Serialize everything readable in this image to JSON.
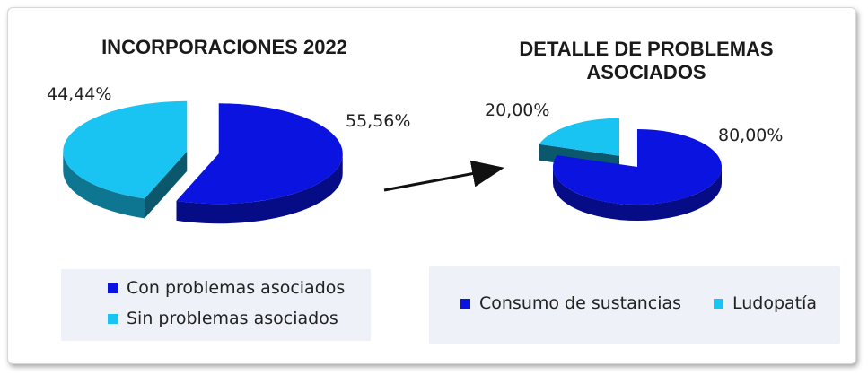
{
  "chart_data": [
    {
      "type": "pie",
      "title": "INCORPORACIONES 2022",
      "categories": [
        "Con problemas asociados",
        "Sin problemas asociados"
      ],
      "values": [
        55.56,
        44.44
      ],
      "labels": [
        "55,56%",
        "44,44%"
      ],
      "colors": [
        "#0a13e0",
        "#19c4f2"
      ],
      "legend": "bottom"
    },
    {
      "type": "pie",
      "title": "DETALLE DE PROBLEMAS ASOCIADOS",
      "title_lines": [
        "DETALLE DE PROBLEMAS",
        "ASOCIADOS"
      ],
      "categories": [
        "Consumo de sustancias",
        "Ludopatía"
      ],
      "values": [
        80.0,
        20.0
      ],
      "labels": [
        "80,00%",
        "20,00%"
      ],
      "colors": [
        "#0a13e0",
        "#19c4f2"
      ],
      "legend": "bottom"
    }
  ]
}
